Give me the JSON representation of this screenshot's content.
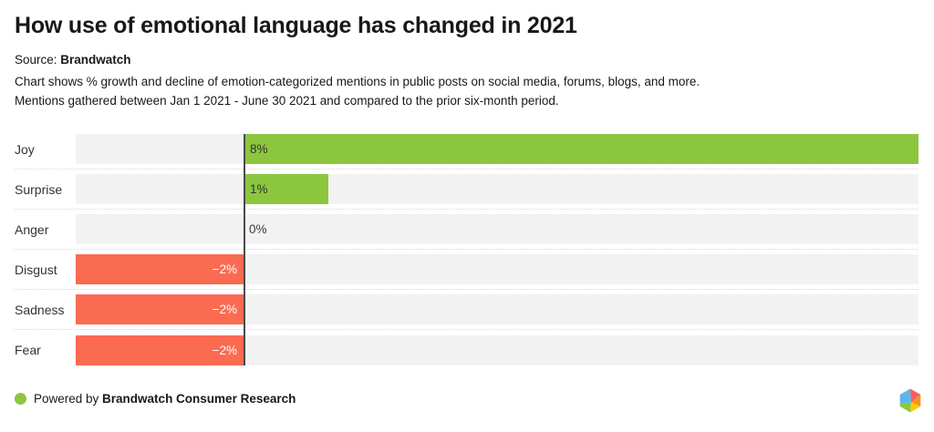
{
  "header": {
    "title": "How use of emotional language has changed in 2021",
    "source_prefix": "Source: ",
    "source_name": "Brandwatch",
    "description_line1": "Chart shows % growth and decline of emotion-categorized mentions in public posts on social media, forums, blogs, and more.",
    "description_line2": "Mentions gathered between Jan 1 2021 - June 30 2021 and compared to the prior six-month period."
  },
  "chart_data": {
    "type": "bar",
    "orientation": "horizontal",
    "categories": [
      "Joy",
      "Surprise",
      "Anger",
      "Disgust",
      "Sadness",
      "Fear"
    ],
    "values": [
      8,
      1,
      0,
      -2,
      -2,
      -2
    ],
    "value_labels": [
      "8%",
      "1%",
      "0%",
      "−2%",
      "−2%",
      "−2%"
    ],
    "title": "How use of emotional language has changed in 2021",
    "xlabel": "",
    "ylabel": "",
    "xlim": [
      -2,
      8
    ],
    "grid": false,
    "legend": "none",
    "colors": {
      "positive_bar": "#8CC63F",
      "negative_bar": "#FB6B52",
      "track": "#F2F2F2",
      "zero_line": "#4A4A4A",
      "separator": "#D9D9D9",
      "positive_label_text": "#333333",
      "negative_label_text": "#FFFFFF"
    }
  },
  "footer": {
    "powered_by_prefix": "Powered by ",
    "powered_by_name": "Brandwatch Consumer Research",
    "dot_color": "#8CC63F",
    "logo_icon": "brandwatch-gem-logo",
    "logo_colors": [
      "#5BB7E8",
      "#F2605E",
      "#F7941E",
      "#FFCB05",
      "#8CC63F"
    ]
  }
}
